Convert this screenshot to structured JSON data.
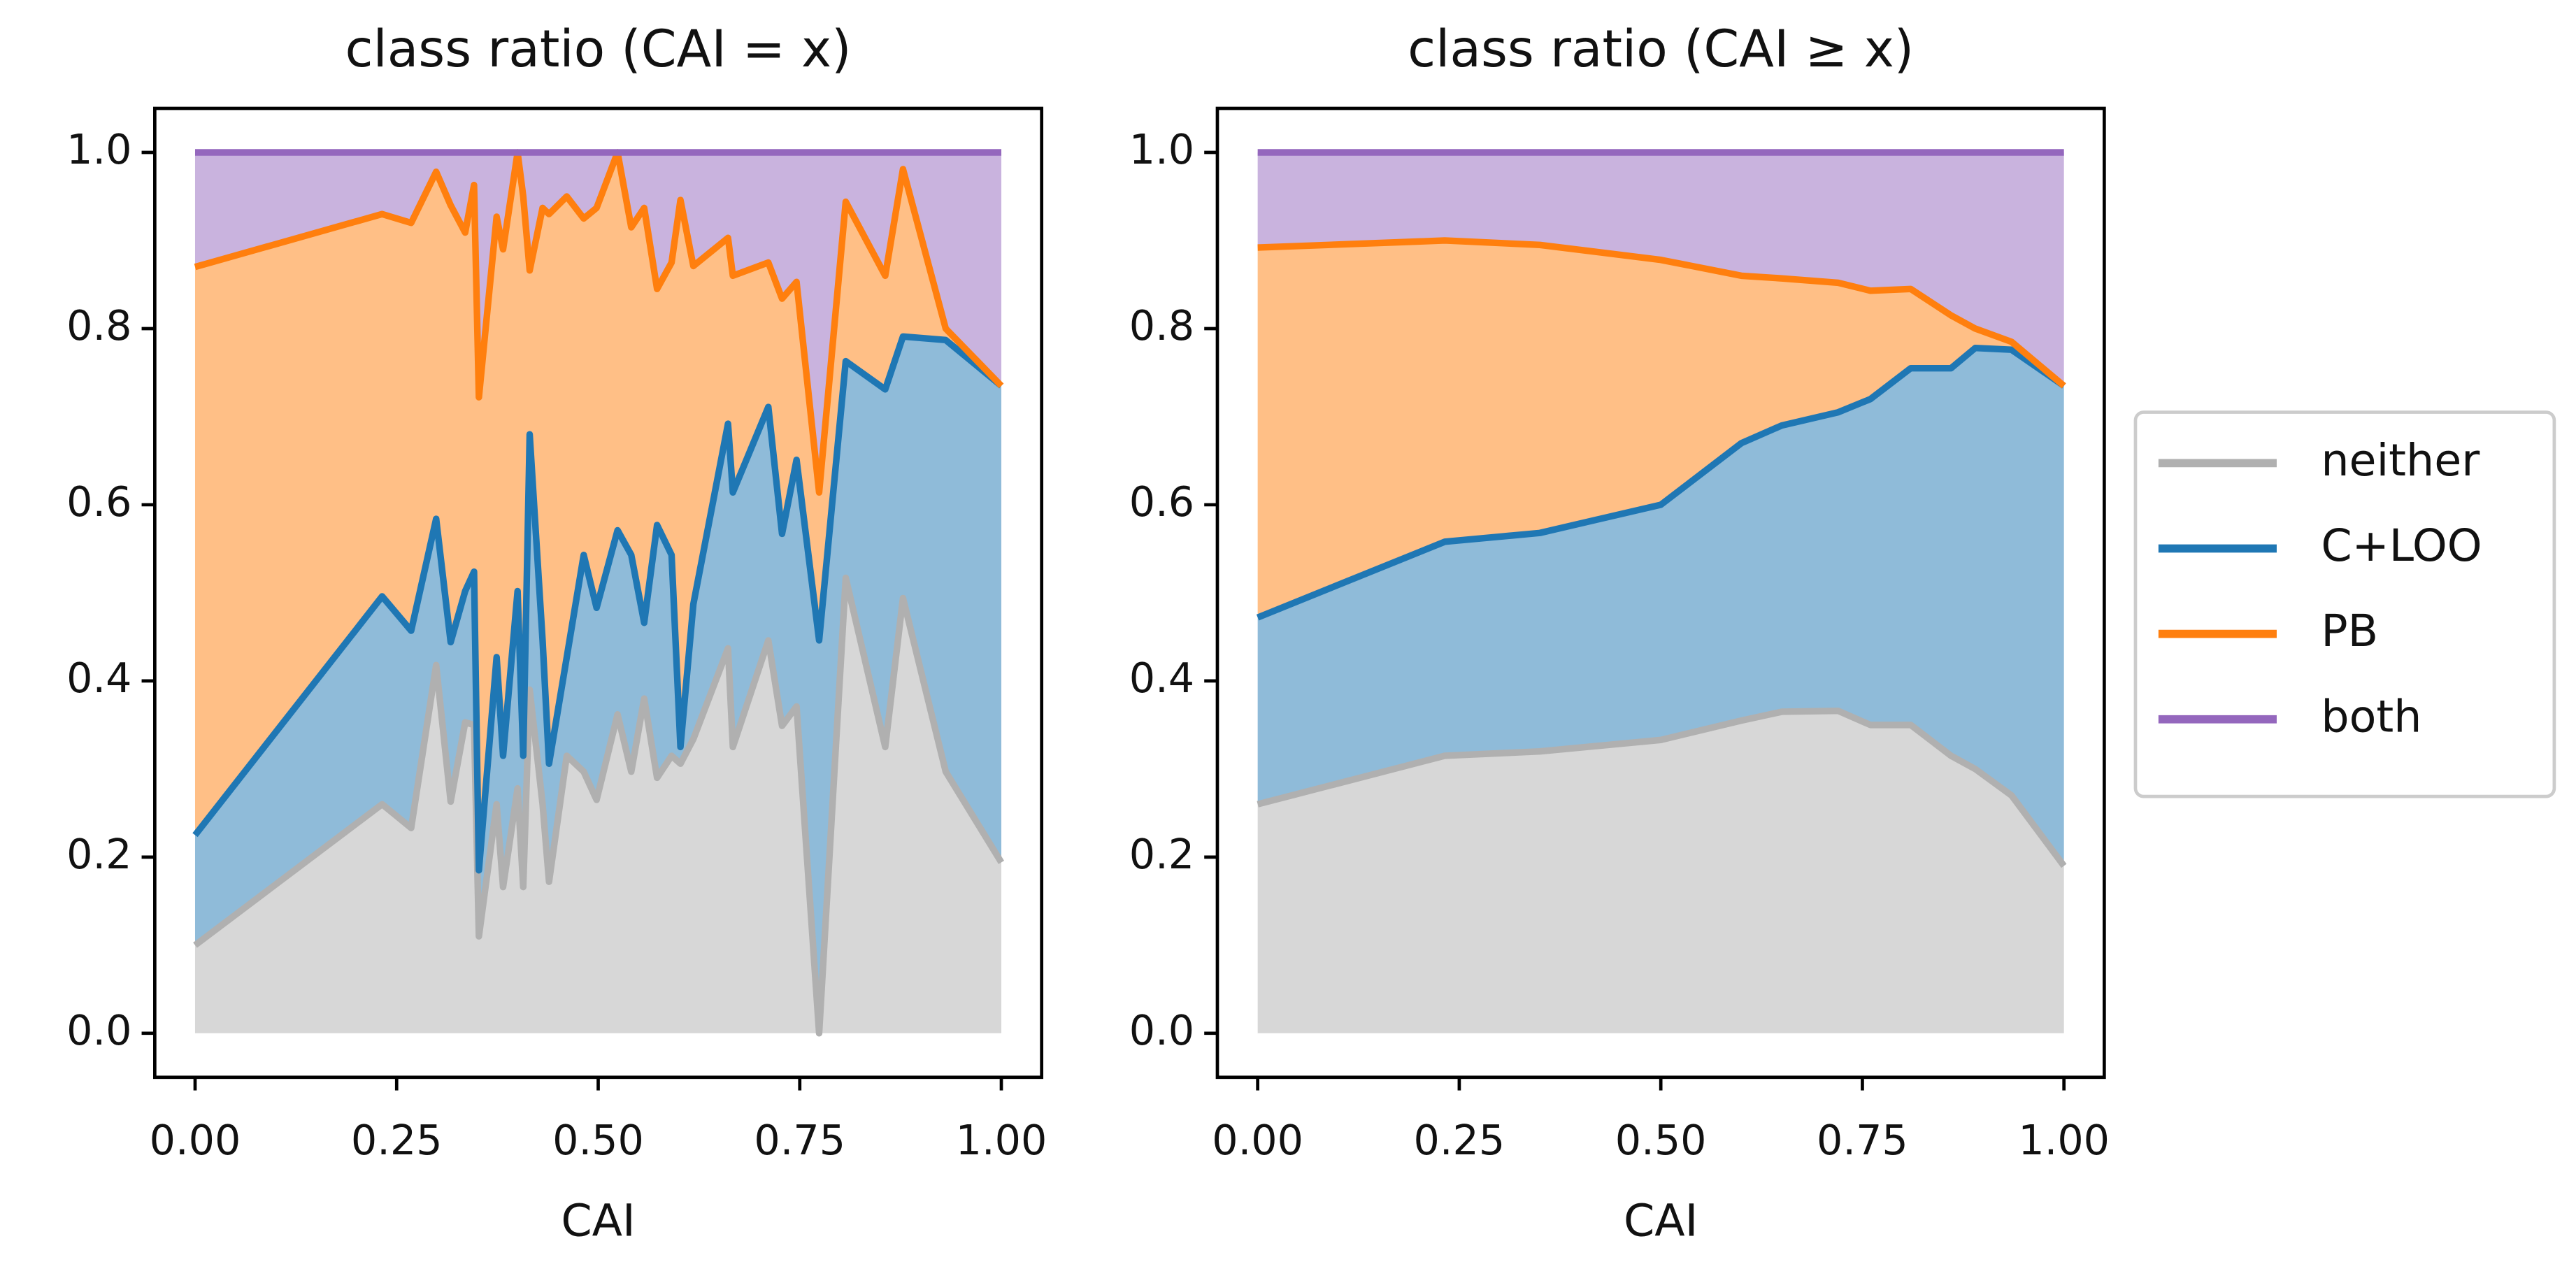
{
  "chart_data": [
    {
      "type": "stackplot",
      "title": "class ratio (CAI = x)",
      "x_label": "CAI",
      "x": [
        0,
        0.232,
        0.268,
        0.299,
        0.317,
        0.335,
        0.346,
        0.352,
        0.374,
        0.382,
        0.4,
        0.407,
        0.415,
        0.431,
        0.439,
        0.461,
        0.482,
        0.498,
        0.524,
        0.541,
        0.557,
        0.573,
        0.591,
        0.602,
        0.618,
        0.661,
        0.667,
        0.711,
        0.728,
        0.746,
        0.774,
        0.807,
        0.856,
        0.878,
        0.931,
        1.0
      ],
      "series": [
        {
          "name": "neither",
          "color": "#b0b0b0",
          "values": [
            0.1,
            0.26,
            0.233,
            0.418,
            0.263,
            0.353,
            0.35,
            0.11,
            0.26,
            0.166,
            0.278,
            0.166,
            0.39,
            0.26,
            0.172,
            0.315,
            0.297,
            0.265,
            0.362,
            0.297,
            0.38,
            0.29,
            0.315,
            0.306,
            0.334,
            0.437,
            0.325,
            0.446,
            0.349,
            0.371,
            0,
            0.517,
            0.325,
            0.494,
            0.297,
            0.194
          ]
        },
        {
          "name": "C+LOO",
          "color": "#1f77b4",
          "values": [
            0.125,
            0.236,
            0.224,
            0.166,
            0.181,
            0.149,
            0.174,
            0.075,
            0.167,
            0.149,
            0.224,
            0.149,
            0.29,
            0.186,
            0.134,
            0.112,
            0.246,
            0.218,
            0.209,
            0.246,
            0.086,
            0.287,
            0.228,
            0.019,
            0.153,
            0.255,
            0.289,
            0.265,
            0.218,
            0.28,
            0.446,
            0.246,
            0.406,
            0.297,
            0.49,
            0.541
          ]
        },
        {
          "name": "PB",
          "color": "#ff7f0e",
          "values": [
            0.645,
            0.434,
            0.463,
            0.394,
            0.496,
            0.407,
            0.439,
            0.537,
            0.5,
            0.575,
            0.498,
            0.635,
            0.186,
            0.491,
            0.624,
            0.523,
            0.382,
            0.454,
            0.429,
            0.372,
            0.471,
            0.268,
            0.332,
            0.621,
            0.384,
            0.211,
            0.246,
            0.164,
            0.267,
            0.202,
            0.168,
            0.181,
            0.129,
            0.19,
            0.013,
            0
          ]
        },
        {
          "name": "both",
          "color": "#9467bd",
          "values": [
            0.13,
            0.07,
            0.08,
            0.022,
            0.06,
            0.091,
            0.037,
            0.278,
            0.073,
            0.11,
            0,
            0.05,
            0.134,
            0.063,
            0.07,
            0.05,
            0.075,
            0.063,
            0,
            0.085,
            0.063,
            0.155,
            0.125,
            0.054,
            0.129,
            0.097,
            0.14,
            0.125,
            0.166,
            0.147,
            0.386,
            0.056,
            0.14,
            0.019,
            0.2,
            0.265
          ]
        }
      ],
      "xlim": [
        -0.05,
        1.05
      ],
      "ylim": [
        -0.05,
        1.05
      ],
      "xticks": [
        {
          "value": 0,
          "label": "0.00"
        },
        {
          "value": 0.25,
          "label": "0.25"
        },
        {
          "value": 0.5,
          "label": "0.50"
        },
        {
          "value": 0.75,
          "label": "0.75"
        },
        {
          "value": 1,
          "label": "1.00"
        }
      ],
      "yticks": [
        {
          "value": 0,
          "label": "0.0"
        },
        0.2,
        0.4,
        0.6,
        0.8,
        {
          "value": 1,
          "label": "1.0"
        }
      ],
      "legend": "right"
    },
    {
      "type": "stackplot",
      "title": "class ratio (CAI ≥ x)",
      "x_label": "CAI",
      "x": [
        0,
        0.232,
        0.35,
        0.5,
        0.6,
        0.65,
        0.72,
        0.76,
        0.81,
        0.86,
        0.89,
        0.935,
        1.0
      ],
      "series": [
        {
          "color": "#b0b0b0",
          "values": [
            0.26,
            0.315,
            0.32,
            0.333,
            0.355,
            0.365,
            0.366,
            0.35,
            0.35,
            0.315,
            0.3,
            0.27,
            0.19
          ]
        },
        {
          "color": "#1f77b4",
          "values": [
            0.212,
            0.243,
            0.248,
            0.267,
            0.315,
            0.325,
            0.339,
            0.37,
            0.405,
            0.44,
            0.478,
            0.506,
            0.545
          ]
        },
        {
          "color": "#ff7f0e",
          "values": [
            0.42,
            0.342,
            0.327,
            0.278,
            0.19,
            0.167,
            0.147,
            0.123,
            0.09,
            0.06,
            0.022,
            0.009,
            0
          ]
        },
        {
          "color": "#9467bd",
          "values": [
            0.108,
            0.1,
            0.105,
            0.122,
            0.14,
            0.143,
            0.148,
            0.157,
            0.155,
            0.185,
            0.2,
            0.215,
            0.265
          ]
        }
      ],
      "xlim": [
        -0.05,
        1.05
      ],
      "ylim": [
        -0.05,
        1.05
      ],
      "xticks": [
        {
          "value": 0,
          "label": "0.00"
        },
        {
          "value": 0.25,
          "label": "0.25"
        },
        {
          "value": 0.5,
          "label": "0.50"
        },
        {
          "value": 0.75,
          "label": "0.75"
        },
        {
          "value": 1,
          "label": "1.00"
        }
      ],
      "yticks": [
        {
          "value": 0,
          "label": "0.0"
        },
        0.2,
        0.4,
        0.6,
        0.8,
        {
          "value": 1,
          "label": "1.0"
        }
      ]
    }
  ]
}
